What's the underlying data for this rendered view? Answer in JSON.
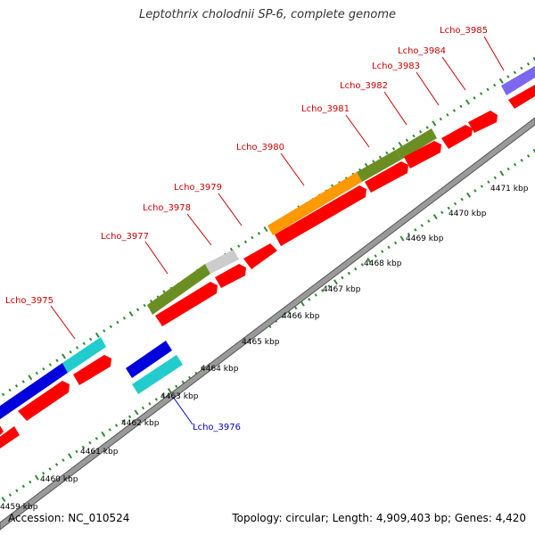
{
  "title": "Leptothrix cholodnii SP-6, complete genome",
  "footer": {
    "accession": "Accession: NC_010524",
    "summary": "Topology: circular; Length: 4,909,403 bp; Genes: 4,420"
  },
  "scale_labels": [
    {
      "kbp": 4459,
      "label": "4459 kbp"
    },
    {
      "kbp": 4460,
      "label": "4460 kbp"
    },
    {
      "kbp": 4461,
      "label": "4461 kbp"
    },
    {
      "kbp": 4462,
      "label": "4462 kbp"
    },
    {
      "kbp": 4463,
      "label": "4463 kbp"
    },
    {
      "kbp": 4464,
      "label": "4464 kbp"
    },
    {
      "kbp": 4465,
      "label": "4465 kbp"
    },
    {
      "kbp": 4466,
      "label": "4466 kbp"
    },
    {
      "kbp": 4467,
      "label": "4467 kbp"
    },
    {
      "kbp": 4468,
      "label": "4468 kbp"
    },
    {
      "kbp": 4469,
      "label": "4469 kbp"
    },
    {
      "kbp": 4470,
      "label": "4470 kbp"
    },
    {
      "kbp": 4471,
      "label": "4471 kbp"
    }
  ],
  "gene_labels": [
    {
      "name": "Lcho_3975",
      "color": "#cc0000"
    },
    {
      "name": "Lcho_3976",
      "color": "#0000cc"
    },
    {
      "name": "Lcho_3977",
      "color": "#cc0000"
    },
    {
      "name": "Lcho_3978",
      "color": "#cc0000"
    },
    {
      "name": "Lcho_3979",
      "color": "#cc0000"
    },
    {
      "name": "Lcho_3980",
      "color": "#cc0000"
    },
    {
      "name": "Lcho_3981",
      "color": "#cc0000"
    },
    {
      "name": "Lcho_3982",
      "color": "#cc0000"
    },
    {
      "name": "Lcho_3983",
      "color": "#cc0000"
    },
    {
      "name": "Lcho_3984",
      "color": "#cc0000"
    },
    {
      "name": "Lcho_3985",
      "color": "#cc0000"
    }
  ],
  "colors": {
    "backbone": "#9a9a9a",
    "backbone_edge": "#555555",
    "tick": "#2e8b2e",
    "cds": "#ff0000",
    "olive": "#6b8e23",
    "orange": "#ff9900",
    "grey": "#cccccc",
    "blue": "#0000dd",
    "cyan": "#22cccc",
    "lavender": "#7b68ee",
    "label_red": "#cc0000",
    "label_blue": "#0000cc"
  }
}
